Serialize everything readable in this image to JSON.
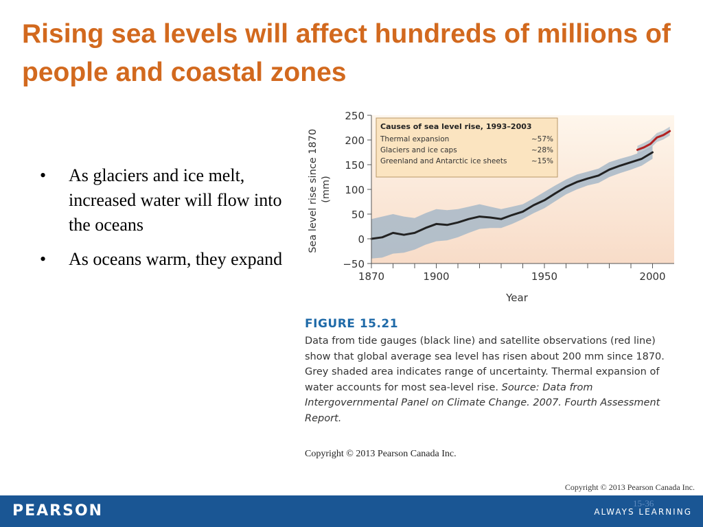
{
  "slide": {
    "title": "Rising sea levels will affect hundreds of millions of people and coastal zones",
    "bullets": [
      {
        "text": "As glaciers and ice melt, increased water will flow into the oceans"
      },
      {
        "text": "As oceans warm, they expand"
      }
    ],
    "bullet_symbol": "•",
    "copyright": "Copyright © 2013 Pearson Canada Inc.",
    "slide_number": "15-36"
  },
  "figure": {
    "label": "FIGURE 15.21",
    "caption": "Data from tide gauges (black line) and satellite observations (red line) show that global average sea level has risen about 200 mm since 1870. Grey shaded area indicates range of uncertainty. Thermal expansion of water accounts for most sea-level rise.",
    "source": "Source: Data from Intergovernmental Panel on Climate Change. 2007. Fourth Assessment Report.",
    "copyright": "Copyright © 2013 Pearson Canada Inc."
  },
  "footer": {
    "brand": "PEARSON",
    "tagline": "ALWAYS LEARNING"
  },
  "colors": {
    "title": "#d2691e",
    "figure_label": "#1f6aa8",
    "footer_bg": "#1a5694",
    "plot_bg_top": "#fef6ec",
    "plot_bg_bottom": "#f8dcc8",
    "uncertainty_band": "#a7b8c8",
    "tide_gauge_line": "#222222",
    "satellite_line": "#b22222",
    "inset_bg": "#fbe4c0"
  },
  "chart_data": {
    "type": "line",
    "xlabel": "Year",
    "ylabel": "Sea level rise since 1870 (mm)",
    "xlim": [
      1870,
      2010
    ],
    "ylim": [
      -50,
      250
    ],
    "x_tick_labels": [
      "1870",
      "1900",
      "1950",
      "2000"
    ],
    "x_ticks": [
      1870,
      1880,
      1890,
      1900,
      1910,
      1920,
      1930,
      1940,
      1950,
      1960,
      1970,
      1980,
      1990,
      2000
    ],
    "y_tick_labels": [
      "250",
      "200",
      "150",
      "100",
      "50",
      "0",
      "−50"
    ],
    "y_ticks": [
      250,
      200,
      150,
      100,
      50,
      0,
      -50
    ],
    "series": [
      {
        "role": "tide_gauge",
        "x": [
          1870,
          1875,
          1880,
          1885,
          1890,
          1895,
          1900,
          1905,
          1910,
          1915,
          1920,
          1925,
          1930,
          1935,
          1940,
          1945,
          1950,
          1955,
          1960,
          1965,
          1970,
          1975,
          1980,
          1985,
          1990,
          1995,
          2000
        ],
        "y": [
          0,
          3,
          12,
          8,
          12,
          22,
          30,
          28,
          33,
          40,
          45,
          43,
          40,
          48,
          55,
          68,
          78,
          92,
          105,
          115,
          122,
          128,
          140,
          148,
          155,
          162,
          175
        ],
        "lower": [
          -40,
          -38,
          -30,
          -28,
          -22,
          -12,
          -5,
          -3,
          3,
          12,
          20,
          22,
          22,
          30,
          40,
          52,
          62,
          76,
          90,
          100,
          108,
          113,
          125,
          133,
          140,
          148,
          162
        ],
        "upper": [
          40,
          45,
          50,
          45,
          42,
          52,
          60,
          58,
          60,
          65,
          70,
          65,
          60,
          65,
          70,
          82,
          95,
          108,
          120,
          130,
          136,
          142,
          155,
          162,
          168,
          176,
          188
        ]
      },
      {
        "role": "satellite",
        "x": [
          1993,
          1996,
          1999,
          2002,
          2005,
          2008
        ],
        "y": [
          180,
          185,
          192,
          205,
          210,
          218
        ],
        "lower": [
          172,
          176,
          183,
          196,
          201,
          209
        ],
        "upper": [
          188,
          194,
          201,
          214,
          219,
          227
        ]
      }
    ],
    "inset": {
      "title": "Causes of sea level rise, 1993–2003",
      "rows": [
        {
          "label": "Thermal expansion",
          "value": "~57%"
        },
        {
          "label": "Glaciers and ice caps",
          "value": "~28%"
        },
        {
          "label": "Greenland and Antarctic ice sheets",
          "value": "~15%"
        }
      ]
    }
  }
}
